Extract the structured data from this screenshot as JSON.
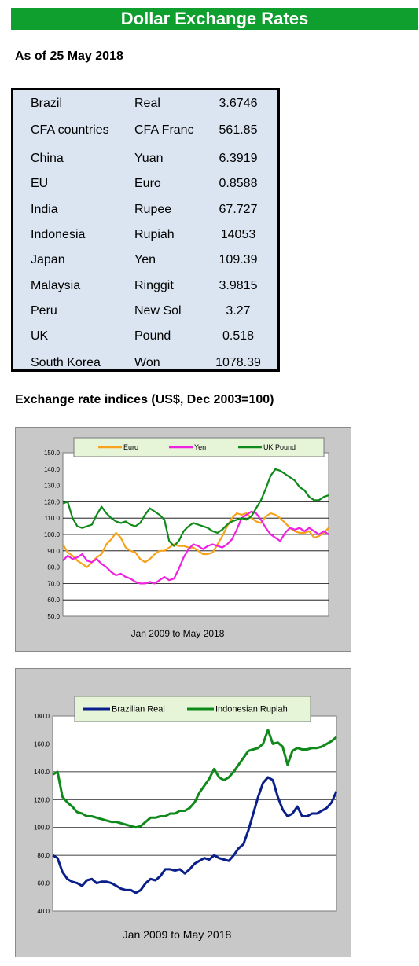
{
  "page": {
    "title": "Dollar Exchange Rates",
    "as_of": "As of 25 May 2018",
    "indices_title": "Exchange rate indices (US$, Dec 2003=100)"
  },
  "rates": [
    {
      "country": "Brazil",
      "currency": "Real",
      "rate": "3.6746"
    },
    {
      "country": "CFA countries",
      "currency": "CFA Franc",
      "rate": "561.85"
    },
    {
      "country": "China",
      "currency": "Yuan",
      "rate": "6.3919"
    },
    {
      "country": "EU",
      "currency": "Euro",
      "rate": "0.8588"
    },
    {
      "country": "India",
      "currency": "Rupee",
      "rate": "67.727"
    },
    {
      "country": "Indonesia",
      "currency": "Rupiah",
      "rate": "14053"
    },
    {
      "country": "Japan",
      "currency": "Yen",
      "rate": "109.39"
    },
    {
      "country": "Malaysia",
      "currency": "Ringgit",
      "rate": "3.9815"
    },
    {
      "country": "Peru",
      "currency": "New Sol",
      "rate": "3.27"
    },
    {
      "country": "UK",
      "currency": "Pound",
      "rate": "0.518"
    },
    {
      "country": "South Korea",
      "currency": "Won",
      "rate": "1078.39"
    }
  ],
  "chart_data": [
    {
      "type": "line",
      "xlabel": "Jan 2009  to May 2018",
      "ylim": [
        50,
        150
      ],
      "yticks": [
        "50.0",
        "60.0",
        "70.0",
        "80.0",
        "90.0",
        "100.0",
        "110.0",
        "120.0",
        "130.0",
        "140.0",
        "150.0"
      ],
      "grid_lines": [
        60,
        70,
        80,
        90,
        100,
        110,
        120
      ],
      "legend": "top",
      "x_range": [
        "Jan 2009",
        "May 2018"
      ],
      "series": [
        {
          "name": "Euro",
          "color": "#f7a21b",
          "values": [
            94,
            89,
            87,
            84,
            82,
            80,
            83,
            86,
            88,
            94,
            97,
            101,
            98,
            92,
            90,
            89,
            85,
            83,
            85,
            88,
            90,
            90,
            92,
            94,
            93,
            93,
            92,
            92,
            90,
            88,
            88,
            89,
            94,
            99,
            105,
            110,
            113,
            112,
            113,
            110,
            108,
            107,
            111,
            113,
            112,
            110,
            107,
            104,
            102,
            101,
            101,
            102,
            98,
            99,
            101,
            104
          ]
        },
        {
          "name": "Yen",
          "color": "#f021e1",
          "values": [
            84,
            87,
            85,
            86,
            88,
            84,
            83,
            85,
            82,
            80,
            77,
            75,
            76,
            74,
            73,
            71,
            70,
            70,
            71,
            70,
            72,
            74,
            72,
            73,
            79,
            86,
            91,
            94,
            93,
            91,
            93,
            94,
            93,
            92,
            94,
            97,
            103,
            110,
            112,
            114,
            113,
            109,
            104,
            100,
            98,
            96,
            101,
            104,
            103,
            104,
            102,
            104,
            102,
            100,
            102,
            100
          ]
        },
        {
          "name": "UK Pound",
          "color": "#0f8a1a",
          "values": [
            119,
            120,
            110,
            105,
            104,
            105,
            106,
            112,
            117,
            113,
            110,
            108,
            107,
            108,
            106,
            105,
            107,
            112,
            116,
            114,
            112,
            109,
            96,
            93,
            96,
            102,
            105,
            107,
            106,
            105,
            104,
            102,
            101,
            103,
            106,
            108,
            109,
            110,
            109,
            111,
            116,
            121,
            128,
            136,
            140,
            139,
            137,
            135,
            133,
            129,
            127,
            123,
            121,
            121,
            123,
            124
          ]
        }
      ]
    },
    {
      "type": "line",
      "xlabel": "Jan 2009  to May 2018",
      "ylim": [
        40,
        180
      ],
      "yticks": [
        "40.0",
        "60.0",
        "80.0",
        "100.0",
        "120.0",
        "140.0",
        "160.0",
        "180.0"
      ],
      "grid_lines": [
        60,
        80,
        100,
        120,
        140,
        160
      ],
      "legend": "top",
      "x_range": [
        "Jan 2009",
        "May 2018"
      ],
      "series": [
        {
          "name": "Brazilian Real",
          "color": "#0b1f8a",
          "values": [
            80,
            78,
            68,
            63,
            61,
            60,
            58,
            62,
            63,
            60,
            61,
            61,
            60,
            58,
            56,
            55,
            55,
            53,
            55,
            60,
            63,
            62,
            65,
            70,
            70,
            69,
            70,
            67,
            70,
            74,
            76,
            78,
            77,
            80,
            78,
            77,
            76,
            80,
            85,
            88,
            98,
            110,
            122,
            132,
            136,
            134,
            122,
            113,
            108,
            110,
            115,
            108,
            108,
            110,
            110,
            112,
            114,
            118,
            126
          ]
        },
        {
          "name": "Indonesian Rupiah",
          "color": "#0f8a1a",
          "values": [
            138,
            140,
            122,
            118,
            115,
            111,
            110,
            108,
            108,
            107,
            106,
            105,
            104,
            104,
            103,
            102,
            101,
            100,
            101,
            104,
            107,
            107,
            108,
            108,
            110,
            110,
            112,
            112,
            114,
            118,
            125,
            130,
            135,
            142,
            136,
            134,
            136,
            140,
            145,
            150,
            155,
            156,
            157,
            160,
            170,
            160,
            161,
            158,
            145,
            155,
            157,
            156,
            156,
            157,
            157,
            158,
            160,
            162,
            165
          ]
        }
      ]
    }
  ]
}
